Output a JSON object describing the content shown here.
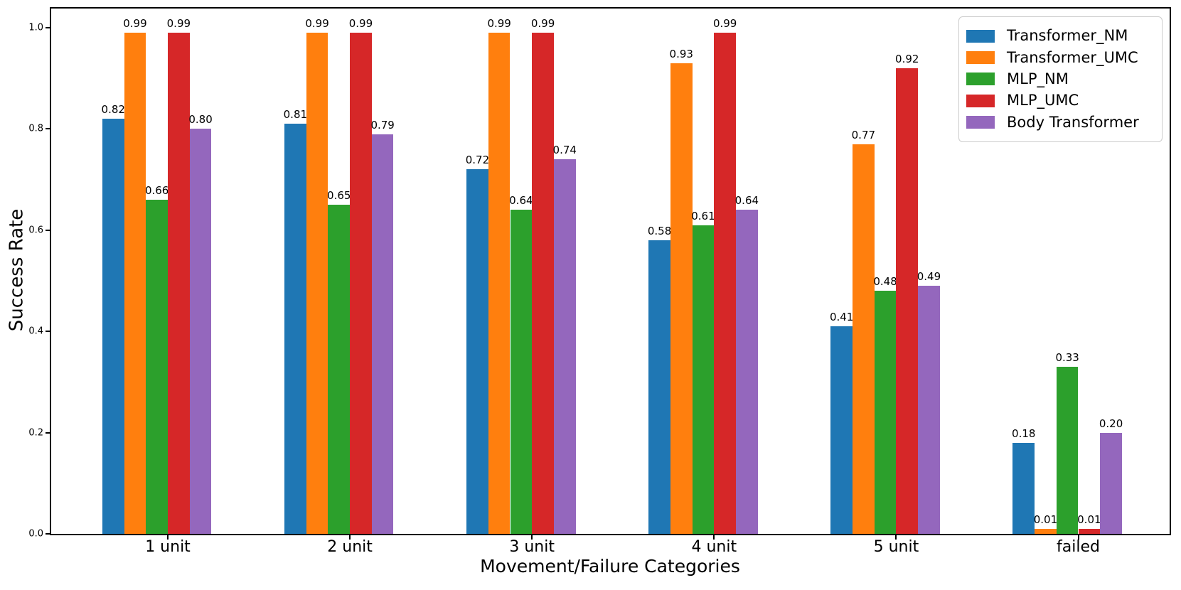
{
  "chart_data": {
    "type": "bar",
    "title": "",
    "xlabel": "Movement/Failure Categories",
    "ylabel": "Success Rate",
    "categories": [
      "1 unit",
      "2 unit",
      "3 unit",
      "4 unit",
      "5 unit",
      "failed"
    ],
    "series": [
      {
        "name": "Transformer_NM",
        "color": "#1f77b4",
        "values": [
          0.82,
          0.81,
          0.72,
          0.58,
          0.41,
          0.18
        ]
      },
      {
        "name": "Transformer_UMC",
        "color": "#ff7f0e",
        "values": [
          0.99,
          0.99,
          0.99,
          0.93,
          0.77,
          0.01
        ]
      },
      {
        "name": "MLP_NM",
        "color": "#2ca02c",
        "values": [
          0.66,
          0.65,
          0.64,
          0.61,
          0.48,
          0.33
        ]
      },
      {
        "name": "MLP_UMC",
        "color": "#d62728",
        "values": [
          0.99,
          0.99,
          0.99,
          0.99,
          0.92,
          0.01
        ]
      },
      {
        "name": "Body Transformer",
        "color": "#9467bd",
        "values": [
          0.8,
          0.79,
          0.74,
          0.64,
          0.49,
          0.2
        ]
      }
    ],
    "ylim": [
      0.0,
      1.04
    ],
    "yticks": [
      "0.0",
      "0.2",
      "0.4",
      "0.6",
      "0.8",
      "1.0"
    ],
    "grid": false,
    "legend_position": "upper right",
    "value_label_decimals": 2,
    "bar_value_labels_shown": true,
    "axis_color": "#000000",
    "background_color": "#ffffff",
    "legend_border_color": "#cccccc"
  }
}
